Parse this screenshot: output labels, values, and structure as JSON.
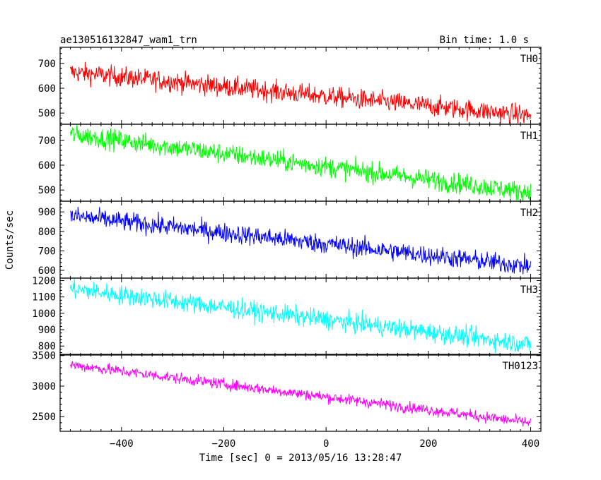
{
  "title_left": "ae130516132847_wam1_trn",
  "title_right": "Bin time: 1.0 s",
  "chart_data": {
    "type": "line",
    "xlabel": "Time [sec] 0 = 2013/05/16 13:28:47",
    "ylabel": "Counts/sec",
    "xlim": [
      -520,
      420
    ],
    "xticks": [
      -400,
      -200,
      0,
      200,
      400
    ],
    "x_start": -500,
    "x_end": 400,
    "bin_time_s": 1.0,
    "grid": false,
    "panels": [
      {
        "name": "TH0",
        "color": "#ff0000",
        "ylim": [
          455,
          765
        ],
        "yticks": [
          500,
          600,
          700
        ],
        "trend": {
          "x": [
            -500,
            400
          ],
          "y": [
            665,
            490
          ]
        },
        "noise_amplitude": 45
      },
      {
        "name": "TH1",
        "color": "#00ff00",
        "ylim": [
          455,
          765
        ],
        "yticks": [
          500,
          600,
          700
        ],
        "trend": {
          "x": [
            -500,
            400
          ],
          "y": [
            725,
            490
          ]
        },
        "noise_amplitude": 45
      },
      {
        "name": "TH2",
        "color": "#0000ff",
        "ylim": [
          560,
          955
        ],
        "yticks": [
          600,
          700,
          800,
          900
        ],
        "trend": {
          "x": [
            -500,
            400
          ],
          "y": [
            880,
            620
          ]
        },
        "noise_amplitude": 55
      },
      {
        "name": "TH3",
        "color": "#00ffff",
        "ylim": [
          745,
          1215
        ],
        "yticks": [
          800,
          900,
          1000,
          1100,
          1200
        ],
        "trend": {
          "x": [
            -500,
            400
          ],
          "y": [
            1150,
            810
          ]
        },
        "noise_amplitude": 65
      },
      {
        "name": "TH0123",
        "color": "#ff00ff",
        "ylim": [
          2260,
          3520
        ],
        "yticks": [
          2500,
          3000,
          3500
        ],
        "trend": {
          "x": [
            -500,
            400
          ],
          "y": [
            3350,
            2400
          ]
        },
        "noise_amplitude": 100
      }
    ]
  }
}
